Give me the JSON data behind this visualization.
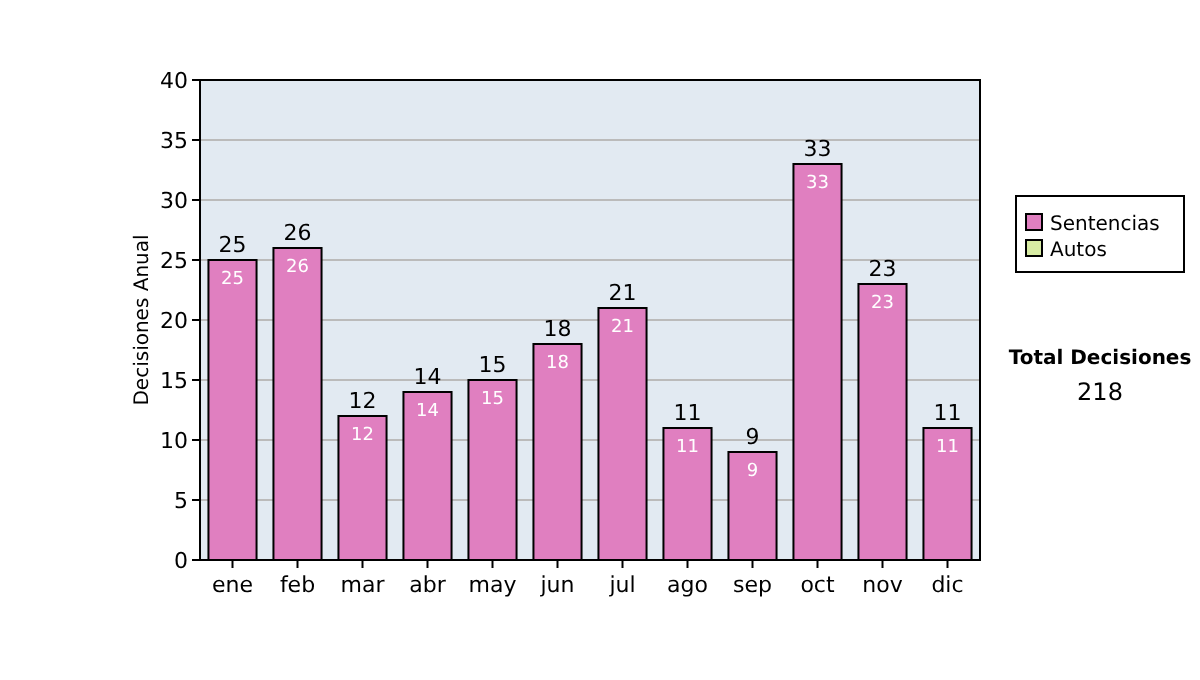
{
  "chart_data": {
    "type": "bar",
    "ylabel": "Decisiones Anual",
    "categories": [
      "ene",
      "feb",
      "mar",
      "abr",
      "may",
      "jun",
      "jul",
      "ago",
      "sep",
      "oct",
      "nov",
      "dic"
    ],
    "series": [
      {
        "name": "Sentencias",
        "color": "#e07fc0",
        "values": [
          25,
          26,
          12,
          14,
          15,
          18,
          21,
          11,
          9,
          33,
          23,
          11
        ],
        "value_labels": [
          "25",
          "26",
          "12",
          "14",
          "15",
          "18",
          "21",
          "11",
          "9",
          "33",
          "23",
          "11"
        ]
      },
      {
        "name": "Autos",
        "color": "#d8eca4",
        "values": [
          0,
          0,
          0,
          0,
          0,
          0,
          0,
          0,
          0,
          0,
          0,
          0
        ],
        "value_labels": [
          null,
          null,
          null,
          null,
          null,
          null,
          null,
          null,
          null,
          null,
          null,
          null
        ]
      }
    ],
    "stacked": true,
    "totals": [
      "25",
      "26",
      "12",
      "14",
      "15",
      "18",
      "21",
      "11",
      "9",
      "33",
      "23",
      "11"
    ],
    "ylim": [
      0,
      40
    ],
    "yticks": [
      0,
      5,
      10,
      15,
      20,
      25,
      30,
      35,
      40
    ],
    "grid": "y",
    "legend": "right",
    "annotations": [
      "Total Decisiones",
      "218"
    ]
  }
}
